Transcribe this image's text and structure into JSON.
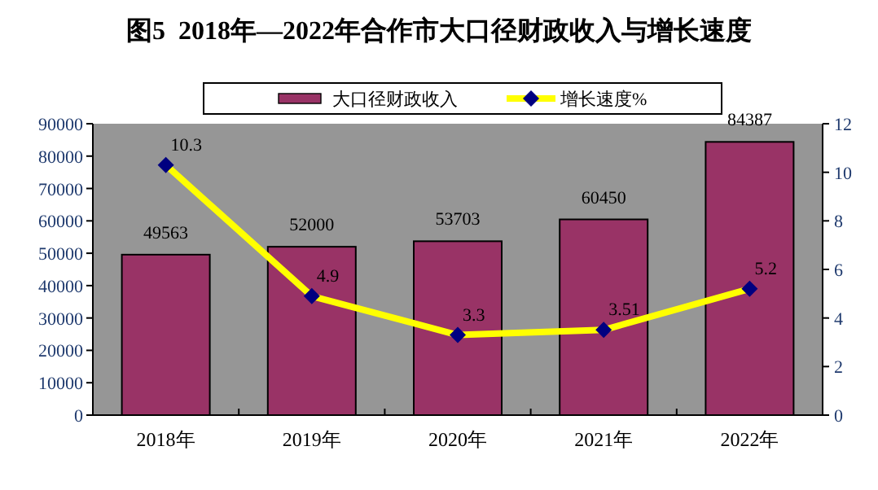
{
  "chart_data": {
    "type": "bar",
    "title": "图5  2018年—2022年合作市大口径财政收入与增长速度",
    "categories": [
      "2018年",
      "2019年",
      "2020年",
      "2021年",
      "2022年"
    ],
    "series": [
      {
        "name": "大口径财政收入",
        "color": "#993366",
        "values": [
          49563,
          52000,
          53703,
          60450,
          84387
        ]
      },
      {
        "name": "增长速度%",
        "type": "line",
        "axis": "y2",
        "color": "#ffff00",
        "values": [
          10.3,
          4.9,
          3.3,
          3.51,
          5.2
        ]
      }
    ],
    "ylim": [
      0,
      90000
    ],
    "yticks": [
      0,
      10000,
      20000,
      30000,
      40000,
      50000,
      60000,
      70000,
      80000,
      90000
    ],
    "y2lim": [
      0,
      12
    ],
    "y2ticks": [
      0,
      2,
      4,
      6,
      8,
      10,
      12
    ],
    "data_labels": true,
    "legend": "top",
    "marker": "diamond",
    "grid": false
  }
}
